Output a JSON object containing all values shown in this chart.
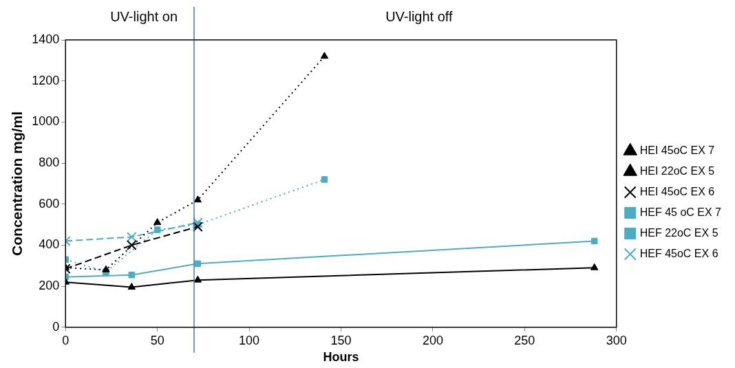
{
  "chart_data": {
    "type": "line",
    "xlabel": "Hours",
    "ylabel": "Concentration mg/ml",
    "xlim": [
      0,
      300
    ],
    "xticks": [
      0,
      50,
      100,
      150,
      200,
      250,
      300
    ],
    "ylim": [
      0,
      1400
    ],
    "yticks": [
      0,
      200,
      400,
      600,
      800,
      1000,
      1200,
      1400
    ],
    "grid": false,
    "legend": "right",
    "annotations": [
      "UV-light on",
      "UV-light off"
    ],
    "ref_lines": [
      {
        "axis": "x",
        "value": 70,
        "color": "#4472c4"
      }
    ],
    "series": [
      {
        "name": "HEI 45oC EX 7",
        "color": "#000000",
        "marker": "triangle",
        "line_style": "dotted",
        "x": [
          0,
          22,
          50,
          72,
          141
        ],
        "values": [
          290,
          280,
          510,
          620,
          1320
        ]
      },
      {
        "name": "HEI 22oC EX 5",
        "color": "#000000",
        "marker": "triangle",
        "line_style": "solid",
        "x": [
          0,
          36,
          72,
          288
        ],
        "values": [
          220,
          195,
          230,
          290
        ]
      },
      {
        "name": "HEI 45oC EX 6",
        "color": "#000000",
        "marker": "cross",
        "line_style": "dashed",
        "x": [
          0,
          36,
          72
        ],
        "values": [
          285,
          400,
          490
        ]
      },
      {
        "name": "HEF 45 oC EX 7",
        "color": "#4bacc6",
        "marker": "square",
        "line_style": "dotted",
        "x": [
          0,
          22,
          50,
          72,
          141
        ],
        "values": [
          330,
          270,
          475,
          500,
          720
        ]
      },
      {
        "name": "HEF 22oC EX 5",
        "color": "#4bacc6",
        "marker": "square",
        "line_style": "solid",
        "x": [
          0,
          36,
          72,
          288
        ],
        "values": [
          245,
          255,
          310,
          420
        ]
      },
      {
        "name": "HEF 45oC EX 6",
        "color": "#4bacc6",
        "marker": "cross",
        "line_style": "dashed",
        "x": [
          0,
          36,
          72
        ],
        "values": [
          420,
          440,
          510
        ]
      }
    ]
  }
}
